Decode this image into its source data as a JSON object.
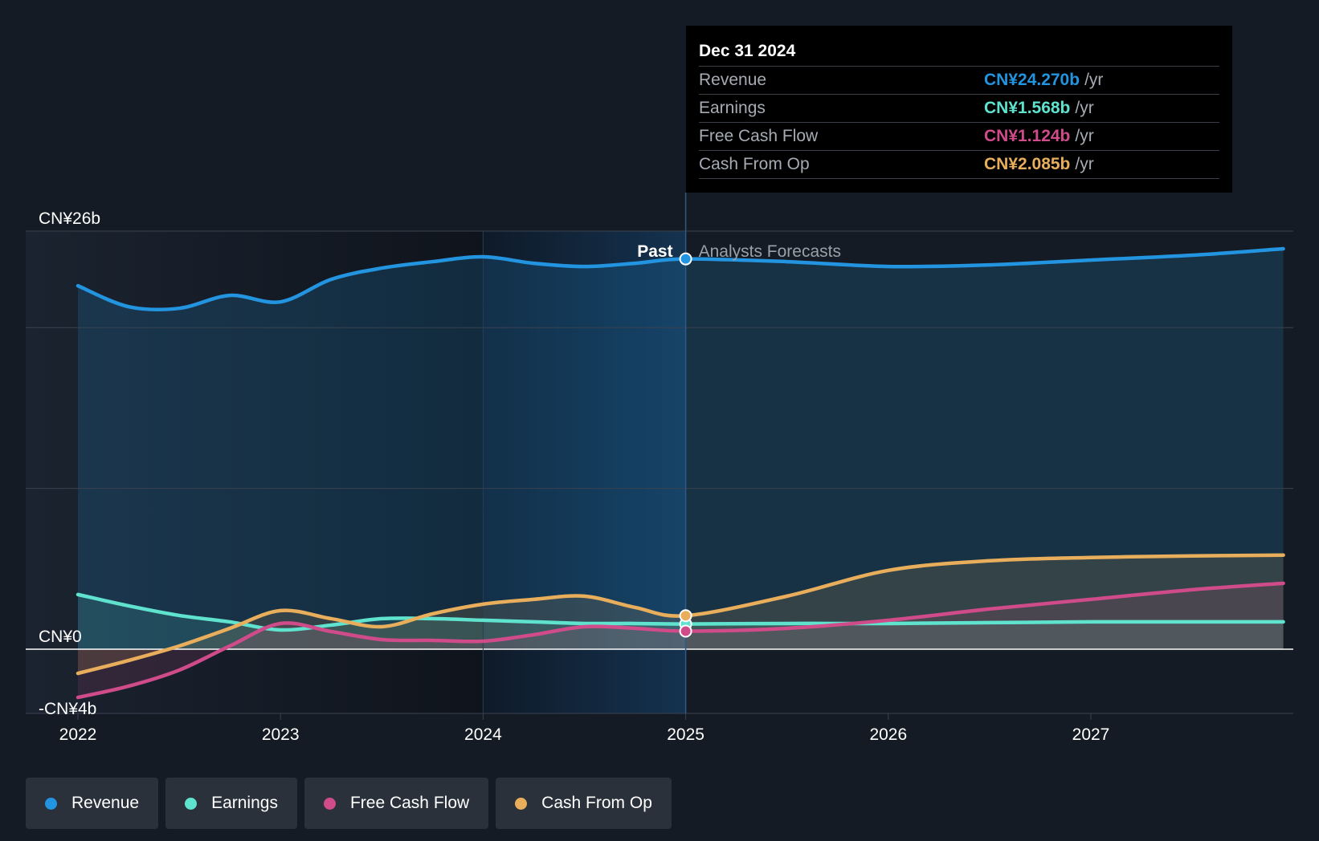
{
  "chart_data": {
    "type": "area",
    "y_tick_labels": [
      "CN¥26b",
      "CN¥0",
      "-CN¥4b"
    ],
    "ylim": [
      -4,
      26
    ],
    "x_tick_labels": [
      "2022",
      "2023",
      "2024",
      "2025",
      "2026",
      "2027"
    ],
    "xlim": [
      2021.75,
      2027.95
    ],
    "past_label": "Past",
    "forecast_label": "Analysts Forecasts",
    "divider_x": 2025.0,
    "highlight_start": 2024.0,
    "series": [
      {
        "name": "Revenue",
        "color": "#2394df",
        "x": [
          2022.0,
          2022.25,
          2022.5,
          2022.75,
          2023.0,
          2023.25,
          2023.5,
          2023.75,
          2024.0,
          2024.25,
          2024.5,
          2024.75,
          2025.0,
          2025.5,
          2026.0,
          2026.5,
          2027.0,
          2027.5,
          2027.95
        ],
        "y": [
          22.6,
          21.3,
          21.2,
          22.0,
          21.6,
          23.0,
          23.7,
          24.1,
          24.4,
          24.0,
          23.8,
          24.0,
          24.27,
          24.1,
          23.8,
          23.9,
          24.2,
          24.5,
          24.9
        ]
      },
      {
        "name": "Earnings",
        "color": "#5fe3cf",
        "x": [
          2022.0,
          2022.25,
          2022.5,
          2022.75,
          2023.0,
          2023.25,
          2023.5,
          2023.75,
          2024.0,
          2024.25,
          2024.5,
          2024.75,
          2025.0,
          2025.5,
          2026.0,
          2026.5,
          2027.0,
          2027.5,
          2027.95
        ],
        "y": [
          3.4,
          2.7,
          2.1,
          1.7,
          1.2,
          1.5,
          1.9,
          1.9,
          1.8,
          1.7,
          1.6,
          1.6,
          1.568,
          1.6,
          1.6,
          1.65,
          1.7,
          1.7,
          1.7
        ]
      },
      {
        "name": "Free Cash Flow",
        "color": "#d04b8a",
        "x": [
          2022.0,
          2022.25,
          2022.5,
          2022.75,
          2023.0,
          2023.25,
          2023.5,
          2023.75,
          2024.0,
          2024.25,
          2024.5,
          2024.75,
          2025.0,
          2025.5,
          2026.0,
          2026.5,
          2027.0,
          2027.5,
          2027.95
        ],
        "y": [
          -3.0,
          -2.3,
          -1.3,
          0.2,
          1.6,
          1.1,
          0.6,
          0.55,
          0.5,
          0.9,
          1.4,
          1.3,
          1.124,
          1.3,
          1.8,
          2.5,
          3.1,
          3.7,
          4.1
        ]
      },
      {
        "name": "Cash From Op",
        "color": "#e8ae5c",
        "x": [
          2022.0,
          2022.25,
          2022.5,
          2022.75,
          2023.0,
          2023.25,
          2023.5,
          2023.75,
          2024.0,
          2024.25,
          2024.5,
          2024.75,
          2025.0,
          2025.5,
          2026.0,
          2026.5,
          2027.0,
          2027.5,
          2027.95
        ],
        "y": [
          -1.5,
          -0.7,
          0.2,
          1.3,
          2.4,
          1.9,
          1.4,
          2.2,
          2.8,
          3.1,
          3.3,
          2.6,
          2.085,
          3.3,
          4.9,
          5.5,
          5.7,
          5.8,
          5.85
        ]
      }
    ],
    "tooltip": {
      "date": "Dec 31 2024",
      "unit": "/yr",
      "rows": [
        {
          "label": "Revenue",
          "value": "CN¥24.270b",
          "color": "#2394df"
        },
        {
          "label": "Earnings",
          "value": "CN¥1.568b",
          "color": "#5fe3cf"
        },
        {
          "label": "Free Cash Flow",
          "value": "CN¥1.124b",
          "color": "#d04b8a"
        },
        {
          "label": "Cash From Op",
          "value": "CN¥2.085b",
          "color": "#e8ae5c"
        }
      ]
    },
    "legend": [
      {
        "label": "Revenue",
        "color": "#2394df"
      },
      {
        "label": "Earnings",
        "color": "#5fe3cf"
      },
      {
        "label": "Free Cash Flow",
        "color": "#d04b8a"
      },
      {
        "label": "Cash From Op",
        "color": "#e8ae5c"
      }
    ]
  }
}
